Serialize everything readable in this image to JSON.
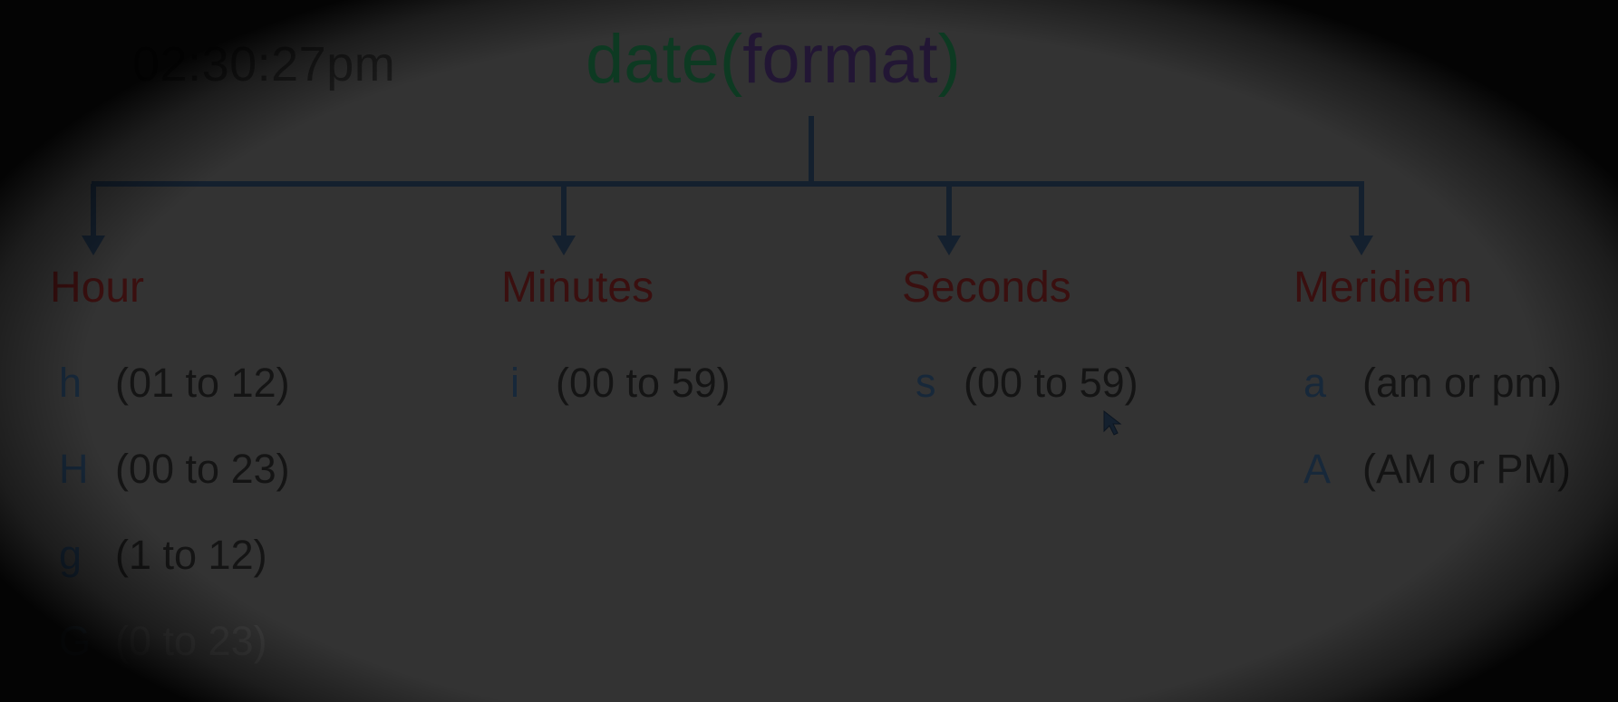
{
  "clock": "02:30:27pm",
  "title": {
    "fn": "date",
    "open_paren": "(",
    "arg": "format",
    "close_paren": ")"
  },
  "columns": [
    {
      "heading": "Hour",
      "items": [
        {
          "code": "h",
          "range": "(01 to 12)"
        },
        {
          "code": "H",
          "range": "(00 to 23)"
        },
        {
          "code": "g",
          "range": "(1 to 12)"
        },
        {
          "code": "G",
          "range": "(0 to 23)"
        }
      ]
    },
    {
      "heading": "Minutes",
      "items": [
        {
          "code": "i",
          "range": "(00 to 59)"
        }
      ]
    },
    {
      "heading": "Seconds",
      "items": [
        {
          "code": "s",
          "range": "(00 to 59)"
        }
      ]
    },
    {
      "heading": "Meridiem",
      "items": [
        {
          "code": "a",
          "range": "(am or pm)"
        },
        {
          "code": "A",
          "range": "(AM or PM)"
        }
      ]
    }
  ],
  "colors": {
    "background": "#333333",
    "heading": "#3a0f0f",
    "code": "#17283a",
    "connector": "#14202e",
    "title_fn": "#0d3a22",
    "title_arg": "#221634"
  }
}
